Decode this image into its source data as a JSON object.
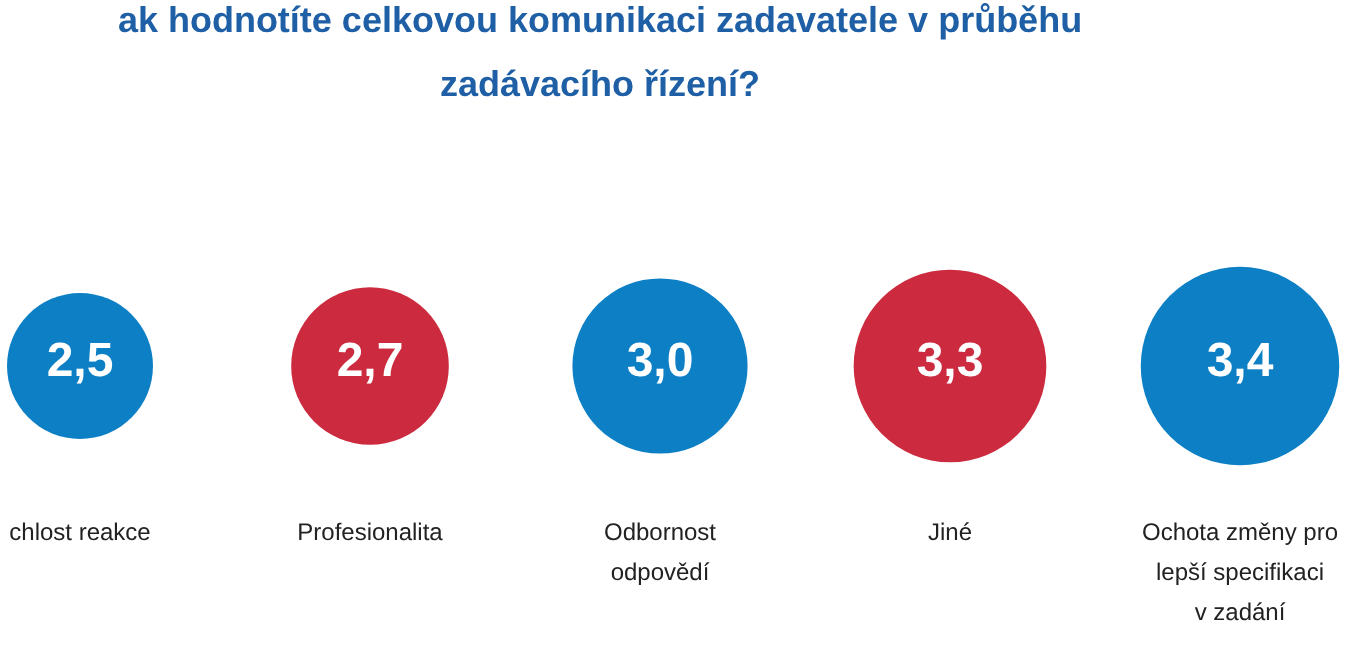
{
  "chart_data": {
    "type": "other",
    "title": "ak hodnotíte celkovou komunikaci zadavatele v průběhu zadávacího řízení?",
    "categories": [
      "chlost reakce",
      "Profesionalita",
      "Odbornost odpovědí",
      "Jiné",
      "Ochota změny pro lepší specifikaci v zadání"
    ],
    "values": [
      2.5,
      2.7,
      3.0,
      3.3,
      3.4
    ],
    "colors": [
      "#0d7fc4",
      "#cc2a3e",
      "#0d7fc4",
      "#cc2a3e",
      "#0d7fc4"
    ],
    "value_labels": [
      "2,5",
      "2,7",
      "3,0",
      "3,3",
      "3,4"
    ]
  }
}
